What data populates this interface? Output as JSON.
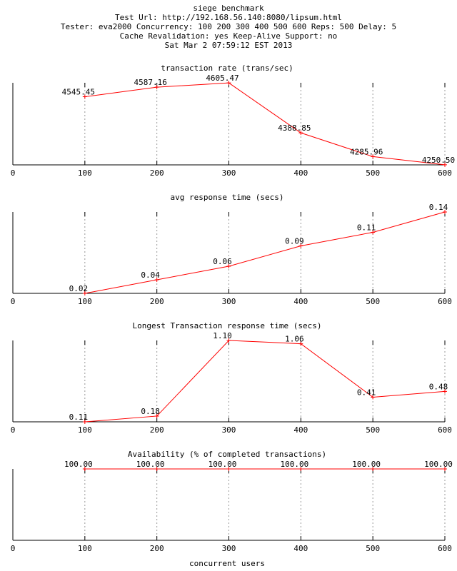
{
  "header": {
    "lines": [
      "siege benchmark",
      "Test Url: http://192.168.56.140:8080/lipsum.html",
      "Tester: eva2000 Concurrency: 100 200 300 400 500 600 Reps: 500 Delay: 5",
      "Cache Revalidation: yes Keep-Alive Support: no",
      "Sat Mar  2 07:59:12 EST 2013"
    ]
  },
  "xlabel": "concurrent users",
  "chart_data": [
    {
      "type": "line",
      "title": "transaction rate (trans/sec)",
      "x": [
        100,
        200,
        300,
        400,
        500,
        600
      ],
      "series": [
        {
          "color": "#ff0000",
          "values": [
            4545.45,
            4587.16,
            4605.47,
            4388.85,
            4285.96,
            4250.5
          ],
          "value_labels": [
            "4545.45",
            "4587.16",
            "4605.47",
            "4388.85",
            "4285.96",
            "4250.50"
          ]
        }
      ],
      "xlim": [
        0,
        600
      ],
      "xticks": [
        0,
        100,
        200,
        300,
        400,
        500,
        600
      ],
      "ylim": [
        4250,
        4606
      ],
      "grid": true
    },
    {
      "type": "line",
      "title": "avg response time (secs)",
      "x": [
        100,
        200,
        300,
        400,
        500,
        600
      ],
      "series": [
        {
          "color": "#ff0000",
          "values": [
            0.02,
            0.04,
            0.06,
            0.09,
            0.11,
            0.14
          ]
        }
      ],
      "xlim": [
        0,
        600
      ],
      "xticks": [
        0,
        100,
        200,
        300,
        400,
        500,
        600
      ],
      "ylim": [
        0.02,
        0.14
      ],
      "grid": true
    },
    {
      "type": "line",
      "title": "Longest Transaction response time (secs)",
      "x": [
        100,
        200,
        300,
        400,
        500,
        600
      ],
      "series": [
        {
          "color": "#ff0000",
          "values": [
            0.11,
            0.18,
            1.1,
            1.06,
            0.41,
            0.48
          ],
          "value_labels": [
            "0.11",
            "0.18",
            "1.10",
            "1.06",
            "0.41",
            "0.48"
          ]
        }
      ],
      "xlim": [
        0,
        600
      ],
      "xticks": [
        0,
        100,
        200,
        300,
        400,
        500,
        600
      ],
      "ylim": [
        0.11,
        1.1
      ],
      "grid": true
    },
    {
      "type": "line",
      "title": "Availability (% of completed transactions)",
      "x": [
        100,
        200,
        300,
        400,
        500,
        600
      ],
      "series": [
        {
          "color": "#ff0000",
          "values": [
            100,
            100,
            100,
            100,
            100,
            100
          ],
          "value_labels": [
            "100.00",
            "100.00",
            "100.00",
            "100.00",
            "100.00",
            "100.00"
          ]
        }
      ],
      "xlim": [
        0,
        600
      ],
      "xticks": [
        0,
        100,
        200,
        300,
        400,
        500,
        600
      ],
      "ylim": [
        0,
        100
      ],
      "grid": true
    }
  ]
}
